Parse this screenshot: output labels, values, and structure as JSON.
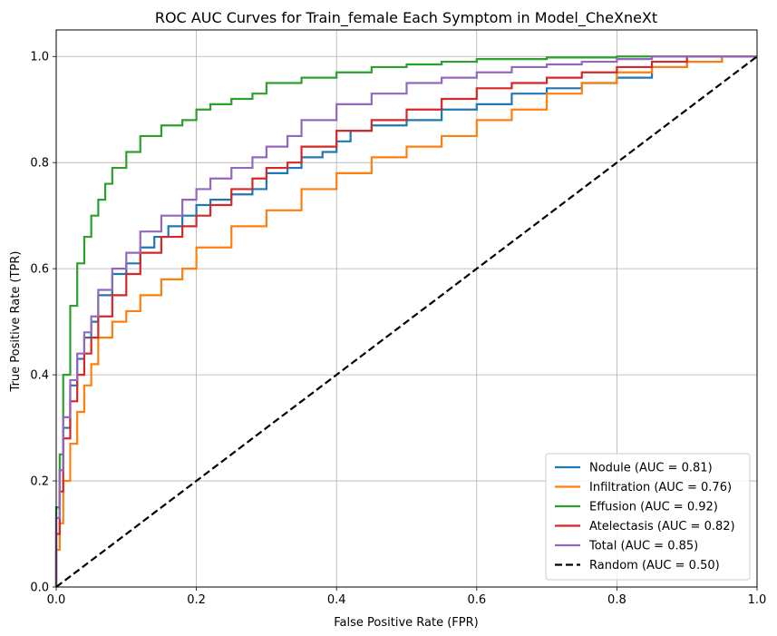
{
  "chart_data": {
    "type": "line",
    "title": "ROC AUC Curves for Train_female Each Symptom in Model_CheXneXt",
    "xlabel": "False Positive Rate (FPR)",
    "ylabel": "True Positive Rate (TPR)",
    "xlim": [
      0,
      1
    ],
    "ylim": [
      0,
      1.05
    ],
    "xticks": [
      0,
      0.2,
      0.4,
      0.6,
      0.8,
      1.0
    ],
    "xtick_labels": [
      "0.0",
      "0.2",
      "0.4",
      "0.6",
      "0.8",
      "1.0"
    ],
    "yticks": [
      0,
      0.2,
      0.4,
      0.6,
      0.8,
      1.0
    ],
    "ytick_labels": [
      "0.0",
      "0.2",
      "0.4",
      "0.6",
      "0.8",
      "1.0"
    ],
    "grid": true,
    "legend_position": "lower-right",
    "series": [
      {
        "name": "Nodule (AUC = 0.81)",
        "color": "#1f77b4",
        "dash": false,
        "x": [
          0,
          0.005,
          0.01,
          0.02,
          0.03,
          0.04,
          0.05,
          0.06,
          0.08,
          0.1,
          0.12,
          0.14,
          0.16,
          0.18,
          0.2,
          0.22,
          0.25,
          0.28,
          0.3,
          0.33,
          0.35,
          0.38,
          0.4,
          0.42,
          0.45,
          0.5,
          0.55,
          0.6,
          0.65,
          0.7,
          0.75,
          0.8,
          0.85,
          0.9,
          0.95,
          1.0
        ],
        "y": [
          0,
          0.15,
          0.22,
          0.3,
          0.38,
          0.43,
          0.47,
          0.5,
          0.55,
          0.59,
          0.61,
          0.64,
          0.66,
          0.68,
          0.7,
          0.72,
          0.73,
          0.74,
          0.75,
          0.78,
          0.79,
          0.81,
          0.82,
          0.84,
          0.86,
          0.87,
          0.88,
          0.9,
          0.91,
          0.93,
          0.94,
          0.95,
          0.96,
          0.98,
          0.99,
          1.0
        ]
      },
      {
        "name": "Infiltration (AUC = 0.76)",
        "color": "#ff7f0e",
        "dash": false,
        "x": [
          0,
          0.005,
          0.01,
          0.02,
          0.03,
          0.04,
          0.05,
          0.06,
          0.08,
          0.1,
          0.12,
          0.15,
          0.18,
          0.2,
          0.25,
          0.3,
          0.35,
          0.4,
          0.45,
          0.5,
          0.55,
          0.6,
          0.65,
          0.7,
          0.75,
          0.8,
          0.85,
          0.9,
          0.95,
          1.0
        ],
        "y": [
          0,
          0.07,
          0.12,
          0.2,
          0.27,
          0.33,
          0.38,
          0.42,
          0.47,
          0.5,
          0.52,
          0.55,
          0.58,
          0.6,
          0.64,
          0.68,
          0.71,
          0.75,
          0.78,
          0.81,
          0.83,
          0.85,
          0.88,
          0.9,
          0.93,
          0.95,
          0.97,
          0.98,
          0.99,
          1.0
        ]
      },
      {
        "name": "Effusion (AUC = 0.92)",
        "color": "#2ca02c",
        "dash": false,
        "x": [
          0,
          0.005,
          0.01,
          0.02,
          0.03,
          0.04,
          0.05,
          0.06,
          0.07,
          0.08,
          0.1,
          0.12,
          0.15,
          0.18,
          0.2,
          0.22,
          0.25,
          0.28,
          0.3,
          0.35,
          0.4,
          0.45,
          0.5,
          0.55,
          0.6,
          0.7,
          0.8,
          0.9,
          1.0
        ],
        "y": [
          0,
          0.15,
          0.25,
          0.4,
          0.53,
          0.61,
          0.66,
          0.7,
          0.73,
          0.76,
          0.79,
          0.82,
          0.85,
          0.87,
          0.88,
          0.9,
          0.91,
          0.92,
          0.93,
          0.95,
          0.96,
          0.97,
          0.98,
          0.985,
          0.99,
          0.995,
          0.998,
          1.0,
          1.0
        ]
      },
      {
        "name": "Atelectasis (AUC = 0.82)",
        "color": "#d62728",
        "dash": false,
        "x": [
          0,
          0.005,
          0.01,
          0.02,
          0.03,
          0.04,
          0.05,
          0.06,
          0.08,
          0.1,
          0.12,
          0.15,
          0.18,
          0.2,
          0.22,
          0.25,
          0.28,
          0.3,
          0.33,
          0.35,
          0.4,
          0.45,
          0.5,
          0.55,
          0.6,
          0.65,
          0.7,
          0.75,
          0.8,
          0.85,
          0.9,
          0.95,
          1.0
        ],
        "y": [
          0,
          0.1,
          0.18,
          0.28,
          0.35,
          0.4,
          0.44,
          0.47,
          0.51,
          0.55,
          0.59,
          0.63,
          0.66,
          0.68,
          0.7,
          0.72,
          0.75,
          0.77,
          0.79,
          0.8,
          0.83,
          0.86,
          0.88,
          0.9,
          0.92,
          0.94,
          0.95,
          0.96,
          0.97,
          0.98,
          0.99,
          1.0,
          1.0
        ]
      },
      {
        "name": "Total (AUC = 0.85)",
        "color": "#9467bd",
        "dash": false,
        "x": [
          0,
          0.005,
          0.01,
          0.02,
          0.03,
          0.04,
          0.05,
          0.06,
          0.08,
          0.1,
          0.12,
          0.15,
          0.18,
          0.2,
          0.22,
          0.25,
          0.28,
          0.3,
          0.33,
          0.35,
          0.4,
          0.45,
          0.5,
          0.55,
          0.6,
          0.65,
          0.7,
          0.75,
          0.8,
          0.85,
          0.9,
          0.95,
          1.0
        ],
        "y": [
          0,
          0.13,
          0.22,
          0.32,
          0.39,
          0.44,
          0.48,
          0.51,
          0.56,
          0.6,
          0.63,
          0.67,
          0.7,
          0.73,
          0.75,
          0.77,
          0.79,
          0.81,
          0.83,
          0.85,
          0.88,
          0.91,
          0.93,
          0.95,
          0.96,
          0.97,
          0.98,
          0.985,
          0.99,
          0.995,
          1.0,
          1.0,
          1.0
        ]
      },
      {
        "name": "Random (AUC = 0.50)",
        "color": "#000000",
        "dash": true,
        "x": [
          0,
          1
        ],
        "y": [
          0,
          1
        ]
      }
    ]
  }
}
